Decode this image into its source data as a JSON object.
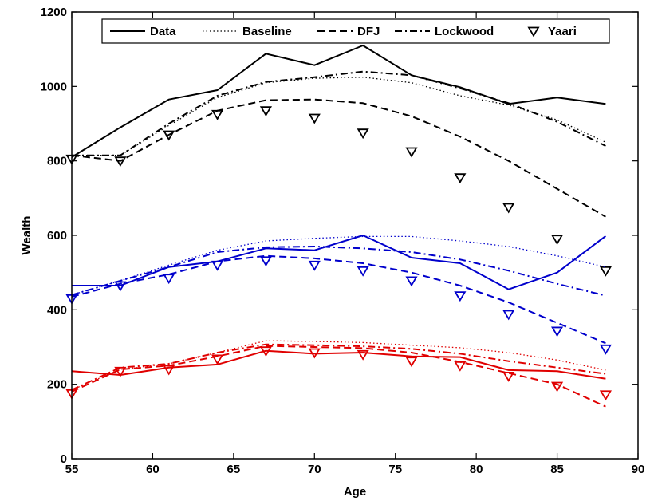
{
  "chart_data": {
    "type": "line",
    "xlabel": "Age",
    "ylabel": "Wealth",
    "xlim": [
      55,
      90
    ],
    "ylim": [
      0,
      1200
    ],
    "xticks": [
      55,
      60,
      65,
      70,
      75,
      80,
      85,
      90
    ],
    "yticks": [
      0,
      200,
      400,
      600,
      800,
      1000,
      1200
    ],
    "grid": false,
    "legend_position": "top",
    "legend": [
      {
        "label": "Data",
        "style": "solid"
      },
      {
        "label": "Baseline",
        "style": "dotted"
      },
      {
        "label": "DFJ",
        "style": "dashed"
      },
      {
        "label": "Lockwood",
        "style": "dashdot"
      },
      {
        "label": "Yaari",
        "style": "marker"
      }
    ],
    "groups": [
      {
        "color": "#000000",
        "data": {
          "x": [
            55,
            58,
            61,
            64,
            67,
            70,
            73,
            76,
            79,
            82,
            85,
            88
          ],
          "y": [
            810,
            890,
            965,
            990,
            1088,
            1057,
            1110,
            1030,
            998,
            953,
            970,
            953
          ]
        },
        "baseline": {
          "x": [
            55,
            58,
            61,
            64,
            67,
            70,
            73,
            76,
            79,
            82,
            85,
            88
          ],
          "y": [
            815,
            815,
            895,
            970,
            1010,
            1022,
            1025,
            1010,
            975,
            950,
            910,
            850
          ]
        },
        "dfj": {
          "x": [
            55,
            58,
            61,
            64,
            67,
            70,
            73,
            76,
            79,
            82,
            85,
            88
          ],
          "y": [
            815,
            800,
            870,
            935,
            963,
            965,
            955,
            920,
            865,
            800,
            725,
            650
          ]
        },
        "lockwood": {
          "x": [
            55,
            58,
            61,
            64,
            67,
            70,
            73,
            76,
            79,
            82,
            85,
            88
          ],
          "y": [
            815,
            815,
            900,
            975,
            1012,
            1025,
            1040,
            1030,
            995,
            955,
            905,
            840
          ]
        },
        "yaari": {
          "x": [
            55,
            58,
            61,
            64,
            67,
            70,
            73,
            76,
            79,
            82,
            85,
            88
          ],
          "y": [
            805,
            800,
            870,
            925,
            935,
            915,
            875,
            825,
            755,
            675,
            590,
            505
          ]
        }
      },
      {
        "color": "#0000cc",
        "data": {
          "x": [
            55,
            58,
            61,
            64,
            67,
            70,
            73,
            76,
            79,
            82,
            85,
            88
          ],
          "y": [
            465,
            465,
            515,
            530,
            565,
            560,
            600,
            540,
            525,
            455,
            500,
            598
          ]
        },
        "baseline": {
          "x": [
            55,
            58,
            61,
            64,
            67,
            70,
            73,
            76,
            79,
            82,
            85,
            88
          ],
          "y": [
            440,
            478,
            520,
            560,
            585,
            592,
            597,
            597,
            585,
            570,
            545,
            515
          ]
        },
        "dfj": {
          "x": [
            55,
            58,
            61,
            64,
            67,
            70,
            73,
            76,
            79,
            82,
            85,
            88
          ],
          "y": [
            435,
            470,
            495,
            530,
            545,
            538,
            525,
            500,
            465,
            420,
            365,
            310
          ]
        },
        "lockwood": {
          "x": [
            55,
            58,
            61,
            64,
            67,
            70,
            73,
            76,
            79,
            82,
            85,
            88
          ],
          "y": [
            440,
            478,
            515,
            555,
            568,
            570,
            565,
            555,
            535,
            505,
            470,
            438
          ]
        },
        "yaari": {
          "x": [
            55,
            58,
            61,
            64,
            67,
            70,
            73,
            76,
            79,
            82,
            85,
            88
          ],
          "y": [
            430,
            465,
            485,
            520,
            532,
            520,
            505,
            478,
            438,
            388,
            343,
            295
          ]
        }
      },
      {
        "color": "#e00000",
        "data": {
          "x": [
            55,
            58,
            61,
            64,
            67,
            70,
            73,
            76,
            79,
            82,
            85,
            88
          ],
          "y": [
            235,
            225,
            245,
            253,
            290,
            282,
            285,
            275,
            273,
            238,
            235,
            215
          ]
        },
        "baseline": {
          "x": [
            55,
            58,
            61,
            64,
            67,
            70,
            73,
            76,
            79,
            82,
            85,
            88
          ],
          "y": [
            185,
            240,
            255,
            285,
            317,
            315,
            312,
            305,
            298,
            285,
            265,
            238
          ]
        },
        "dfj": {
          "x": [
            55,
            58,
            61,
            64,
            67,
            70,
            73,
            76,
            79,
            82,
            85,
            88
          ],
          "y": [
            180,
            240,
            250,
            275,
            303,
            300,
            297,
            285,
            260,
            230,
            200,
            140
          ]
        },
        "lockwood": {
          "x": [
            55,
            58,
            61,
            64,
            67,
            70,
            73,
            76,
            79,
            82,
            85,
            88
          ],
          "y": [
            185,
            245,
            255,
            285,
            307,
            305,
            302,
            295,
            282,
            262,
            245,
            228
          ]
        },
        "yaari": {
          "x": [
            55,
            58,
            61,
            64,
            67,
            70,
            73,
            76,
            79,
            82,
            85,
            88
          ],
          "y": [
            175,
            235,
            240,
            268,
            290,
            285,
            280,
            262,
            250,
            222,
            195,
            172
          ]
        }
      }
    ]
  }
}
